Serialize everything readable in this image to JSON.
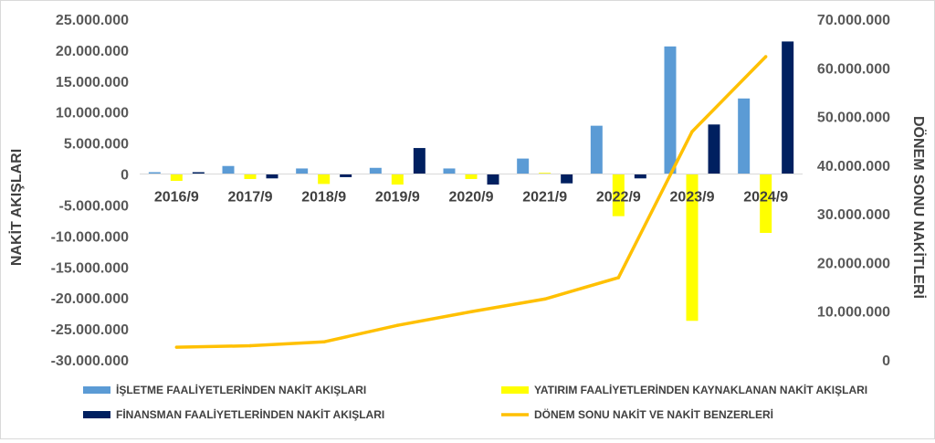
{
  "chart_data": {
    "type": "bar",
    "categories": [
      "2016/9",
      "2017/9",
      "2018/9",
      "2019/9",
      "2020/9",
      "2021/9",
      "2022/9",
      "2023/9",
      "2024/9"
    ],
    "series": [
      {
        "name": "İŞLETME FAALİYETLERİNDEN NAKİT AKIŞLARI",
        "kind": "bar",
        "axis": "left",
        "color": "#5b9bd5",
        "values": [
          300000,
          1300000,
          900000,
          1000000,
          900000,
          2500000,
          7800000,
          20600000,
          12200000
        ]
      },
      {
        "name": "YATIRIM FAALİYETLERİNDEN KAYNAKLANAN NAKİT AKIŞLARI",
        "kind": "bar",
        "axis": "left",
        "color": "#ffff00",
        "values": [
          -1100000,
          -800000,
          -1600000,
          -1700000,
          -800000,
          200000,
          -6800000,
          -23700000,
          -9500000
        ]
      },
      {
        "name": "FİNANSMAN FAALİYETLERİNDEN NAKİT AKIŞLARI",
        "kind": "bar",
        "axis": "left",
        "color": "#002060",
        "values": [
          300000,
          -700000,
          -500000,
          4200000,
          -1700000,
          -1500000,
          -700000,
          8000000,
          21400000
        ]
      },
      {
        "name": "DÖNEM SONU NAKİT VE NAKİT BENZERLERİ",
        "kind": "line",
        "axis": "right",
        "color": "#ffc000",
        "values": [
          2600000,
          2900000,
          3700000,
          7100000,
          9900000,
          12500000,
          16900000,
          46900000,
          62300000
        ]
      }
    ],
    "ylabel": "NAKİT AKIŞLARI",
    "y2label": "DÖNEM SONU NAKİTLERİ",
    "ylim": [
      -30000000,
      25000000
    ],
    "y2lim": [
      0,
      70000000
    ],
    "yticks": [
      25000000,
      20000000,
      15000000,
      10000000,
      5000000,
      0,
      -5000000,
      -10000000,
      -15000000,
      -20000000,
      -25000000,
      -30000000
    ],
    "ytick_labels": [
      "25.000.000",
      "20.000.000",
      "15.000.000",
      "10.000.000",
      "5.000.000",
      "0",
      "-5.000.000",
      "-10.000.000",
      "-15.000.000",
      "-20.000.000",
      "-25.000.000",
      "-30.000.000"
    ],
    "y2ticks": [
      70000000,
      60000000,
      50000000,
      40000000,
      30000000,
      20000000,
      10000000,
      0
    ],
    "y2tick_labels": [
      "70.000.000",
      "60.000.000",
      "50.000.000",
      "40.000.000",
      "30.000.000",
      "20.000.000",
      "10.000.000",
      "0"
    ],
    "grid": false,
    "legend_position": "bottom"
  }
}
